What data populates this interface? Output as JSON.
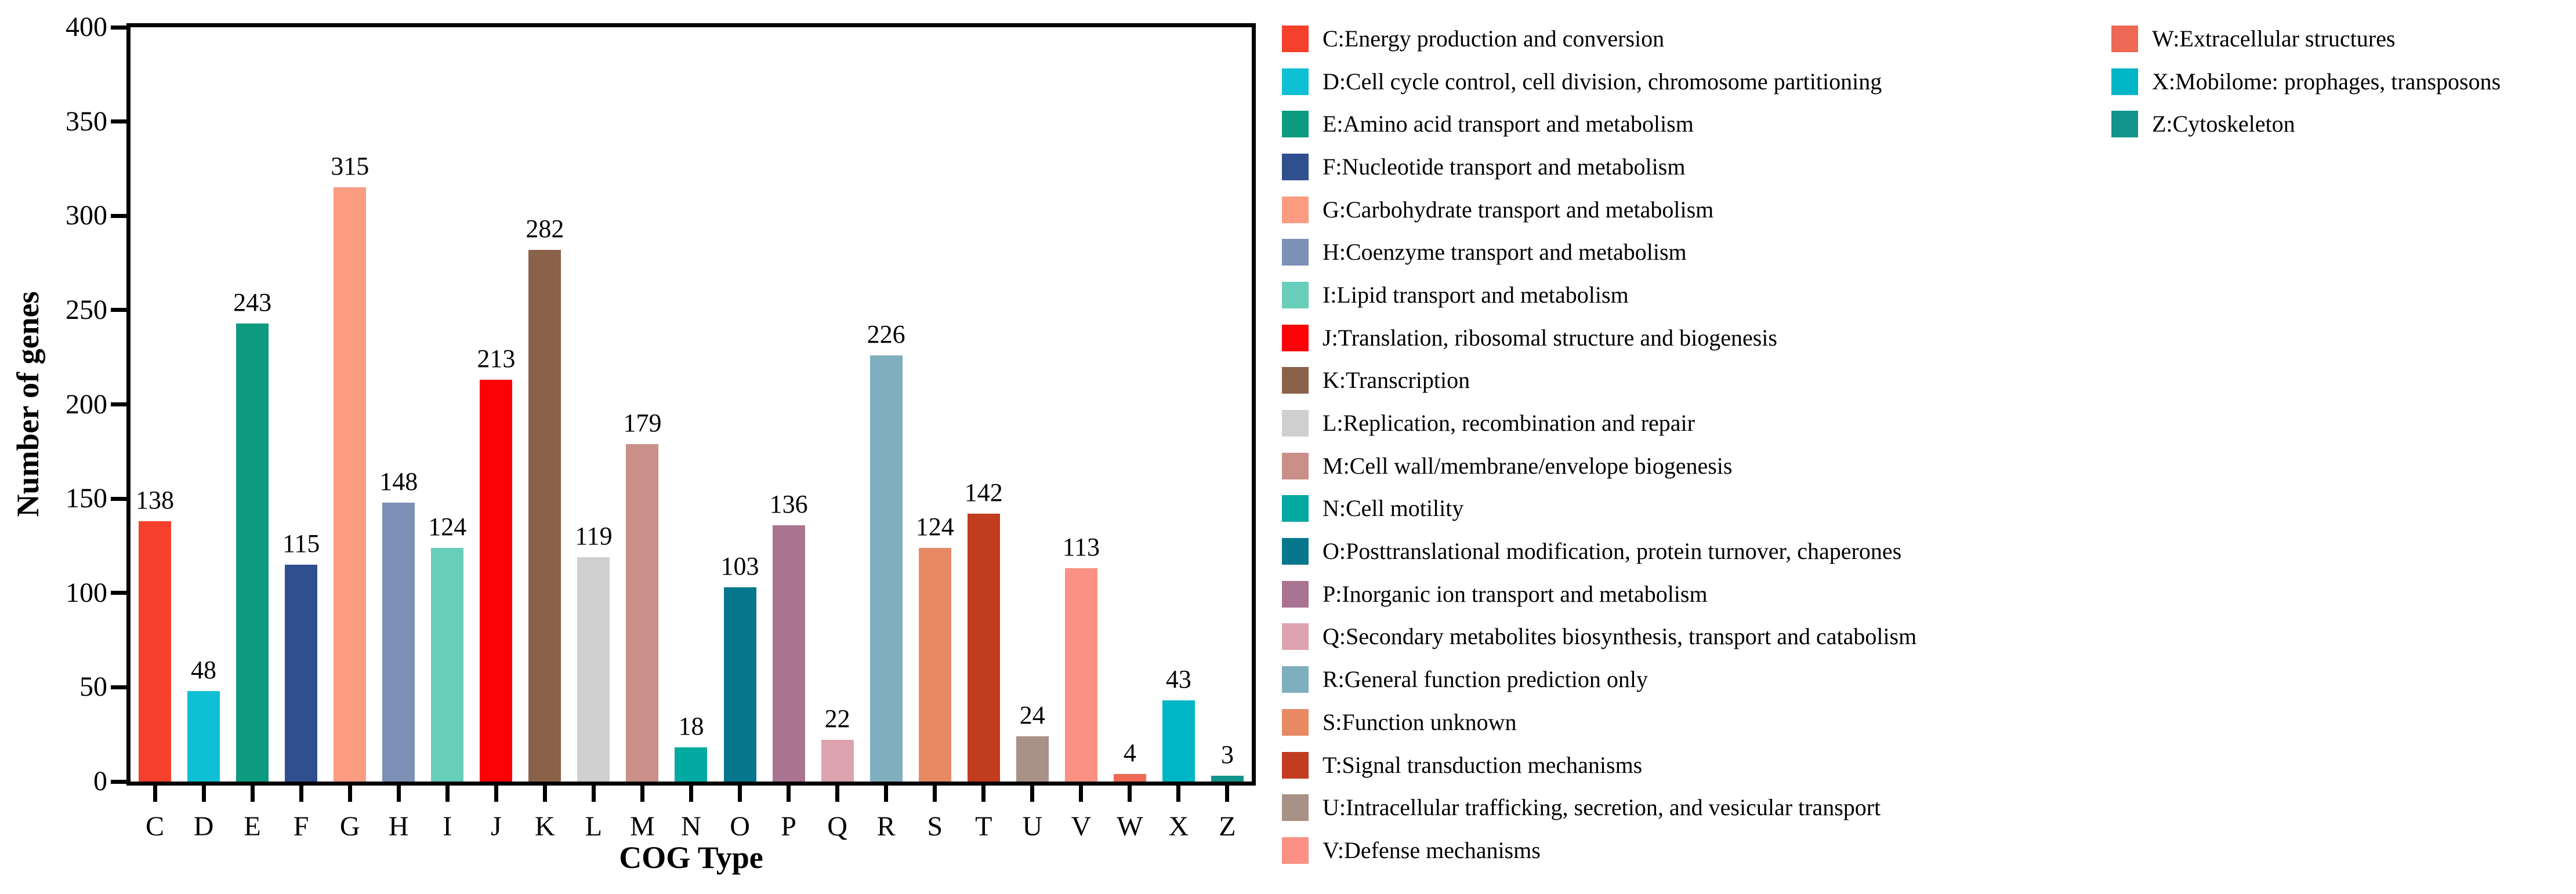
{
  "chart_data": {
    "type": "bar",
    "title": "",
    "xlabel": "COG Type",
    "ylabel": "Number of genes",
    "ylim": [
      0,
      400
    ],
    "yticks": [
      0,
      50,
      100,
      150,
      200,
      250,
      300,
      350,
      400
    ],
    "grid": false,
    "legend_position": "right-outside",
    "bar_value_labels": true,
    "categories": [
      "C",
      "D",
      "E",
      "F",
      "G",
      "H",
      "I",
      "J",
      "K",
      "L",
      "M",
      "N",
      "O",
      "P",
      "Q",
      "R",
      "S",
      "T",
      "U",
      "V",
      "W",
      "X",
      "Z"
    ],
    "values": [
      138,
      48,
      243,
      115,
      315,
      148,
      124,
      213,
      282,
      119,
      179,
      18,
      103,
      136,
      22,
      226,
      124,
      142,
      24,
      113,
      4,
      43,
      3
    ],
    "colors": [
      "#F5402C",
      "#0EC0D6",
      "#0C9B7E",
      "#2F4F8E",
      "#FB9B82",
      "#7D90B5",
      "#68CDB9",
      "#FB0207",
      "#8A6249",
      "#CFCFCF",
      "#C98F88",
      "#01A9A0",
      "#06778C",
      "#A97492",
      "#DDA3AE",
      "#7FAFBE",
      "#E78A63",
      "#C23C20",
      "#A89186",
      "#FB9184",
      "#EE6955",
      "#00B5C5",
      "#12948B"
    ]
  },
  "legend": {
    "columns": [
      {
        "items": [
          {
            "code": "C",
            "label": "C:Energy production and conversion"
          },
          {
            "code": "D",
            "label": "D:Cell cycle control, cell division, chromosome partitioning"
          },
          {
            "code": "E",
            "label": "E:Amino acid transport and metabolism"
          },
          {
            "code": "F",
            "label": "F:Nucleotide transport and metabolism"
          },
          {
            "code": "G",
            "label": "G:Carbohydrate transport and metabolism"
          },
          {
            "code": "H",
            "label": "H:Coenzyme transport and metabolism"
          },
          {
            "code": "I",
            "label": "I:Lipid transport and metabolism"
          },
          {
            "code": "J",
            "label": "J:Translation, ribosomal structure and biogenesis"
          },
          {
            "code": "K",
            "label": "K:Transcription"
          },
          {
            "code": "L",
            "label": "L:Replication, recombination and repair"
          },
          {
            "code": "M",
            "label": "M:Cell wall/membrane/envelope biogenesis"
          },
          {
            "code": "N",
            "label": "N:Cell motility"
          },
          {
            "code": "O",
            "label": "O:Posttranslational modification, protein turnover, chaperones"
          },
          {
            "code": "P",
            "label": "P:Inorganic ion transport and metabolism"
          },
          {
            "code": "Q",
            "label": "Q:Secondary metabolites biosynthesis, transport and catabolism"
          },
          {
            "code": "R",
            "label": "R:General function prediction only"
          },
          {
            "code": "S",
            "label": "S:Function unknown"
          },
          {
            "code": "T",
            "label": "T:Signal transduction mechanisms"
          },
          {
            "code": "U",
            "label": "U:Intracellular trafficking, secretion, and vesicular transport"
          },
          {
            "code": "V",
            "label": "V:Defense mechanisms"
          }
        ]
      },
      {
        "items": [
          {
            "code": "W",
            "label": "W:Extracellular structures"
          },
          {
            "code": "X",
            "label": "X:Mobilome: prophages, transposons"
          },
          {
            "code": "Z",
            "label": "Z:Cytoskeleton"
          }
        ]
      }
    ]
  }
}
